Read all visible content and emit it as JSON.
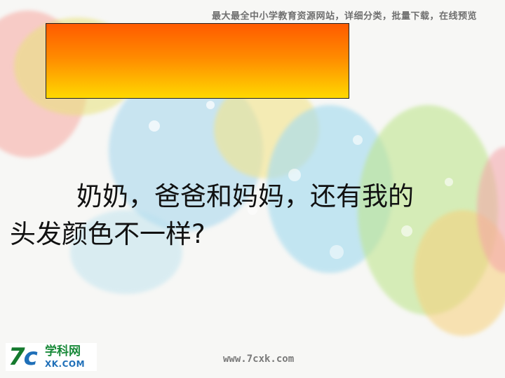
{
  "header": {
    "banner_text": "最大最全中小学教育资源网站，详细分类，批量下载，在线预览"
  },
  "slide": {
    "title_box_text": "",
    "main_text_line1": "奶奶，爸爸和妈妈，还有我的",
    "main_text_line2": "头发颜色不一样?"
  },
  "logo": {
    "mark_7": "7",
    "mark_c": "c",
    "title": "学科网",
    "domain": "XK.COM"
  },
  "footer": {
    "url": "www.7cxk.com"
  },
  "colors": {
    "gradient_top": "#ff5a00",
    "gradient_bottom": "#ffd800",
    "logo_green": "#157a2e",
    "logo_blue": "#1f6fb8"
  }
}
